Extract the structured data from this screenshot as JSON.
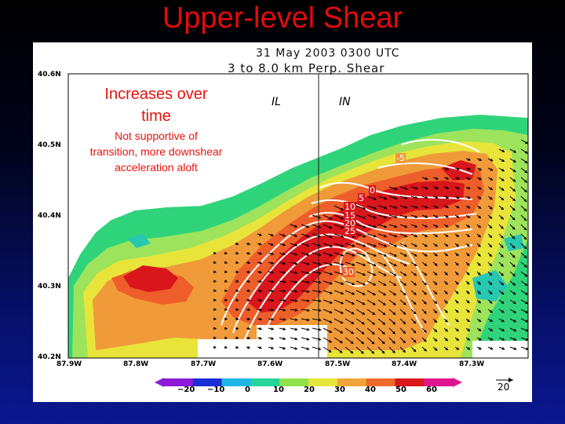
{
  "slide": {
    "title": "Upper-level Shear"
  },
  "plot": {
    "date": "31 May 2003 0300 UTC",
    "variable": "3 to 8.0 km Perp. Shear"
  },
  "map": {
    "lat_labels": [
      "40.6N",
      "40.5N",
      "40.4N",
      "40.3N",
      "40.2N"
    ],
    "lon_labels": [
      "87.9W",
      "87.8W",
      "87.7W",
      "87.6W",
      "87.5W",
      "87.4W",
      "87.3W"
    ],
    "states": [
      "IL",
      "IN"
    ],
    "contour_labels": [
      "-5",
      "0",
      "5",
      "10",
      "15",
      "20",
      "25",
      "30"
    ]
  },
  "annotation": {
    "headline": "Increases over time",
    "body": "Not supportive of transition, more downshear acceleration aloft"
  },
  "colorbar": {
    "ticks": [
      "−20",
      "−10",
      "0",
      "10",
      "20",
      "30",
      "40",
      "50",
      "60"
    ],
    "colors": [
      "#8c1ad6",
      "#1a2fd6",
      "#1fb5e6",
      "#27d39a",
      "#8fe24a",
      "#e6e53a",
      "#f0a43a",
      "#ee6a2a",
      "#d8161c",
      "#e0148e"
    ],
    "vector_ref": "20"
  }
}
